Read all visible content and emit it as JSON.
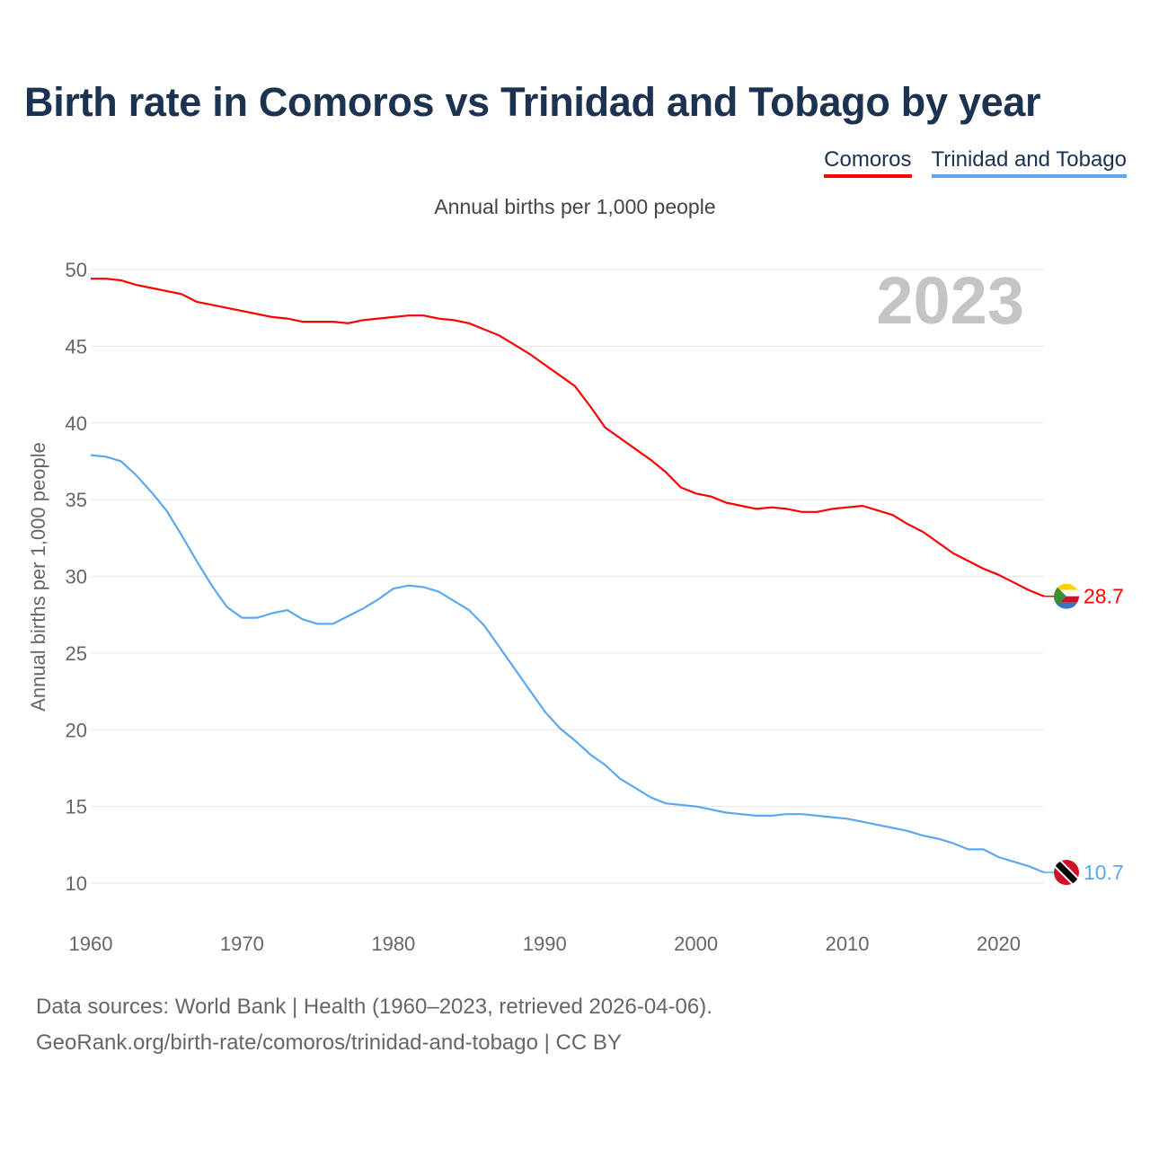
{
  "title": "Birth rate in Comoros vs Trinidad and Tobago by year",
  "legend": [
    "Comoros",
    "Trinidad and Tobago"
  ],
  "subtitle": "Annual births per 1,000 people",
  "year_badge": "2023",
  "footer": {
    "line1": "Data sources: World Bank | Health (1960–2023, retrieved 2026-04-06).",
    "line2": "GeoRank.org/birth-rate/comoros/trinidad-and-tobago | CC BY"
  },
  "chart_data": {
    "type": "line",
    "title": "Birth rate in Comoros vs Trinidad and Tobago by year",
    "xlabel": "",
    "ylabel": "Annual births per 1,000 people",
    "xlim": [
      1960,
      2023
    ],
    "ylim": [
      10,
      50
    ],
    "yticks": [
      "10",
      "15",
      "20",
      "25",
      "30",
      "35",
      "40",
      "45",
      "50"
    ],
    "xticks": [
      "1960",
      "1970",
      "1980",
      "1990",
      "2000",
      "2010",
      "2020"
    ],
    "grid": true,
    "legend_position": "top-right",
    "x_start": 1960,
    "series": [
      {
        "name": "Comoros",
        "color": "#ff0000",
        "end_label": "28.7",
        "icon": "comoros-flag-icon",
        "values": [
          49.4,
          49.4,
          49.3,
          49.0,
          48.8,
          48.6,
          48.4,
          47.9,
          47.7,
          47.5,
          47.3,
          47.1,
          46.9,
          46.8,
          46.6,
          46.6,
          46.6,
          46.5,
          46.7,
          46.8,
          46.9,
          47.0,
          47.0,
          46.8,
          46.7,
          46.5,
          46.1,
          45.7,
          45.1,
          44.5,
          43.8,
          43.1,
          42.4,
          41.1,
          39.7,
          39.0,
          38.3,
          37.6,
          36.8,
          35.8,
          35.4,
          35.2,
          34.8,
          34.6,
          34.4,
          34.5,
          34.4,
          34.2,
          34.2,
          34.4,
          34.5,
          34.6,
          34.3,
          34.0,
          33.4,
          32.9,
          32.2,
          31.5,
          31.0,
          30.5,
          30.1,
          29.6,
          29.1,
          28.7
        ]
      },
      {
        "name": "Trinidad and Tobago",
        "color": "#5ba8ef",
        "end_label": "10.7",
        "icon": "trinidad-flag-icon",
        "values": [
          37.9,
          37.8,
          37.5,
          36.6,
          35.5,
          34.3,
          32.7,
          31.0,
          29.4,
          28.0,
          27.3,
          27.3,
          27.6,
          27.8,
          27.2,
          26.9,
          26.9,
          27.4,
          27.9,
          28.5,
          29.2,
          29.4,
          29.3,
          29.0,
          28.4,
          27.8,
          26.8,
          25.4,
          24.0,
          22.6,
          21.2,
          20.1,
          19.3,
          18.4,
          17.7,
          16.8,
          16.2,
          15.6,
          15.2,
          15.1,
          15.0,
          14.8,
          14.6,
          14.5,
          14.4,
          14.4,
          14.5,
          14.5,
          14.4,
          14.3,
          14.2,
          14.0,
          13.8,
          13.6,
          13.4,
          13.1,
          12.9,
          12.6,
          12.2,
          12.2,
          11.7,
          11.4,
          11.1,
          10.7
        ]
      }
    ]
  }
}
